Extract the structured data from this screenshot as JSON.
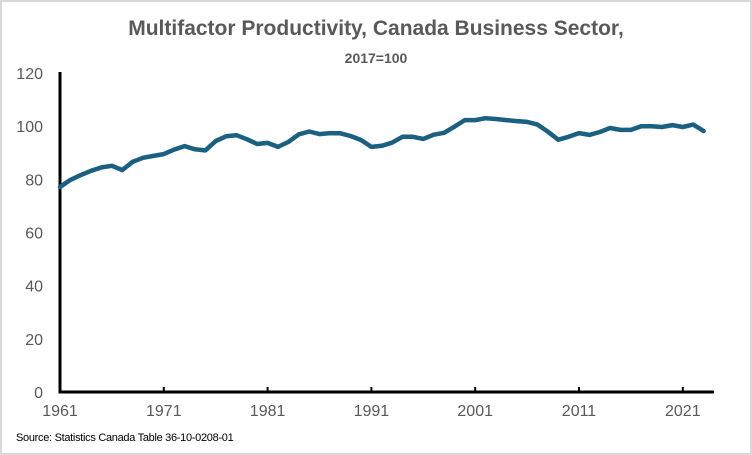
{
  "chart_data": {
    "type": "line",
    "title": "Multifactor Productivity, Canada Business Sector,",
    "subtitle": "2017=100",
    "xlabel": "",
    "ylabel": "",
    "xlim": [
      1961,
      2023
    ],
    "ylim": [
      0,
      120
    ],
    "yticks": [
      0,
      20,
      40,
      60,
      80,
      100,
      120
    ],
    "xticks": [
      1961,
      1971,
      1981,
      1991,
      2001,
      2011,
      2021
    ],
    "grid": false,
    "legend": "none",
    "line_color": "#1b6080",
    "series": [
      {
        "name": "Multifactor Productivity",
        "x": [
          1961,
          1962,
          1963,
          1964,
          1965,
          1966,
          1967,
          1968,
          1969,
          1970,
          1971,
          1972,
          1973,
          1974,
          1975,
          1976,
          1977,
          1978,
          1979,
          1980,
          1981,
          1982,
          1983,
          1984,
          1985,
          1986,
          1987,
          1988,
          1989,
          1990,
          1991,
          1992,
          1993,
          1994,
          1995,
          1996,
          1997,
          1998,
          1999,
          2000,
          2001,
          2002,
          2003,
          2004,
          2005,
          2006,
          2007,
          2008,
          2009,
          2010,
          2011,
          2012,
          2013,
          2014,
          2015,
          2016,
          2017,
          2018,
          2019,
          2020,
          2021,
          2022,
          2023
        ],
        "values": [
          77.1,
          79.8,
          81.6,
          83.2,
          84.5,
          85.1,
          83.5,
          86.6,
          88.1,
          88.8,
          89.5,
          91.2,
          92.5,
          91.3,
          90.9,
          94.4,
          96.2,
          96.6,
          95.1,
          93.3,
          93.7,
          92.2,
          94.1,
          96.9,
          98.0,
          97.0,
          97.4,
          97.3,
          96.3,
          94.8,
          92.2,
          92.6,
          93.8,
          96.0,
          96.0,
          95.2,
          96.8,
          97.5,
          99.8,
          102.3,
          102.3,
          103.0,
          102.7,
          102.3,
          101.9,
          101.6,
          100.6,
          97.9,
          94.9,
          96.0,
          97.4,
          96.7,
          97.8,
          99.3,
          98.6,
          98.6,
          100.0,
          100.0,
          99.7,
          100.4,
          99.7,
          100.6,
          98.2
        ]
      }
    ],
    "source": "Source: Statistics Canada Table 36-10-0208-01"
  }
}
